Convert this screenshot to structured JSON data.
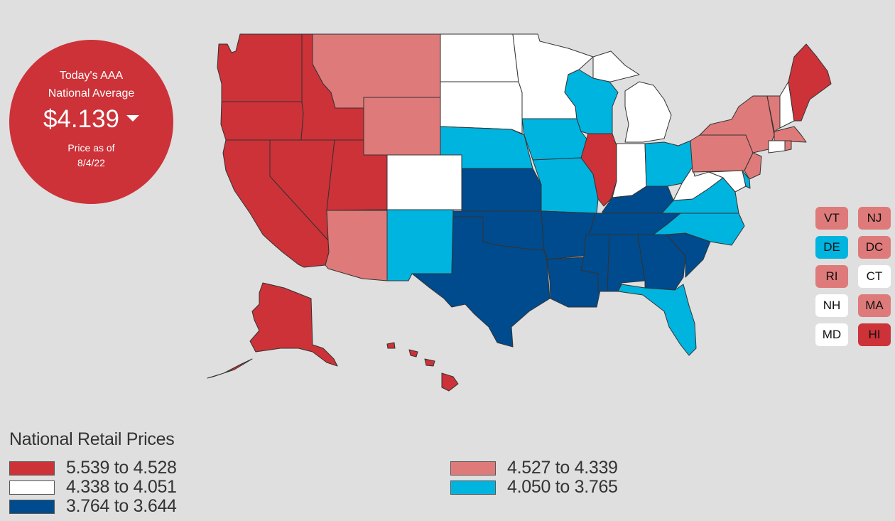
{
  "national_average": {
    "title_line1": "Today's AAA",
    "title_line2": "National Average",
    "price": "$4.139",
    "trend_icon": "caret-down-icon",
    "price_as_of_label": "Price as of",
    "date": "8/4/22"
  },
  "colors": {
    "highest": "#cc3238",
    "high": "#df7a7a",
    "middle": "#ffffff",
    "low": "#00b4e0",
    "lowest": "#004b8d"
  },
  "legend": {
    "title": "National Retail Prices",
    "items": [
      {
        "range": "5.539 to 4.528",
        "color": "#cc3238"
      },
      {
        "range": "4.338 to 4.051",
        "color": "#ffffff"
      },
      {
        "range": "3.764 to 3.644",
        "color": "#004b8d"
      },
      {
        "range": "4.527 to 4.339",
        "color": "#df7a7a"
      },
      {
        "range": "4.050 to 3.765",
        "color": "#00b4e0"
      }
    ]
  },
  "small_states": [
    {
      "abbr": "VT",
      "color": "#df7a7a"
    },
    {
      "abbr": "NJ",
      "color": "#df7a7a"
    },
    {
      "abbr": "DE",
      "color": "#00b4e0"
    },
    {
      "abbr": "DC",
      "color": "#df7a7a"
    },
    {
      "abbr": "RI",
      "color": "#df7a7a"
    },
    {
      "abbr": "CT",
      "color": "#ffffff"
    },
    {
      "abbr": "NH",
      "color": "#ffffff"
    },
    {
      "abbr": "MA",
      "color": "#df7a7a"
    },
    {
      "abbr": "MD",
      "color": "#ffffff"
    },
    {
      "abbr": "HI",
      "color": "#cc3238"
    }
  ]
}
